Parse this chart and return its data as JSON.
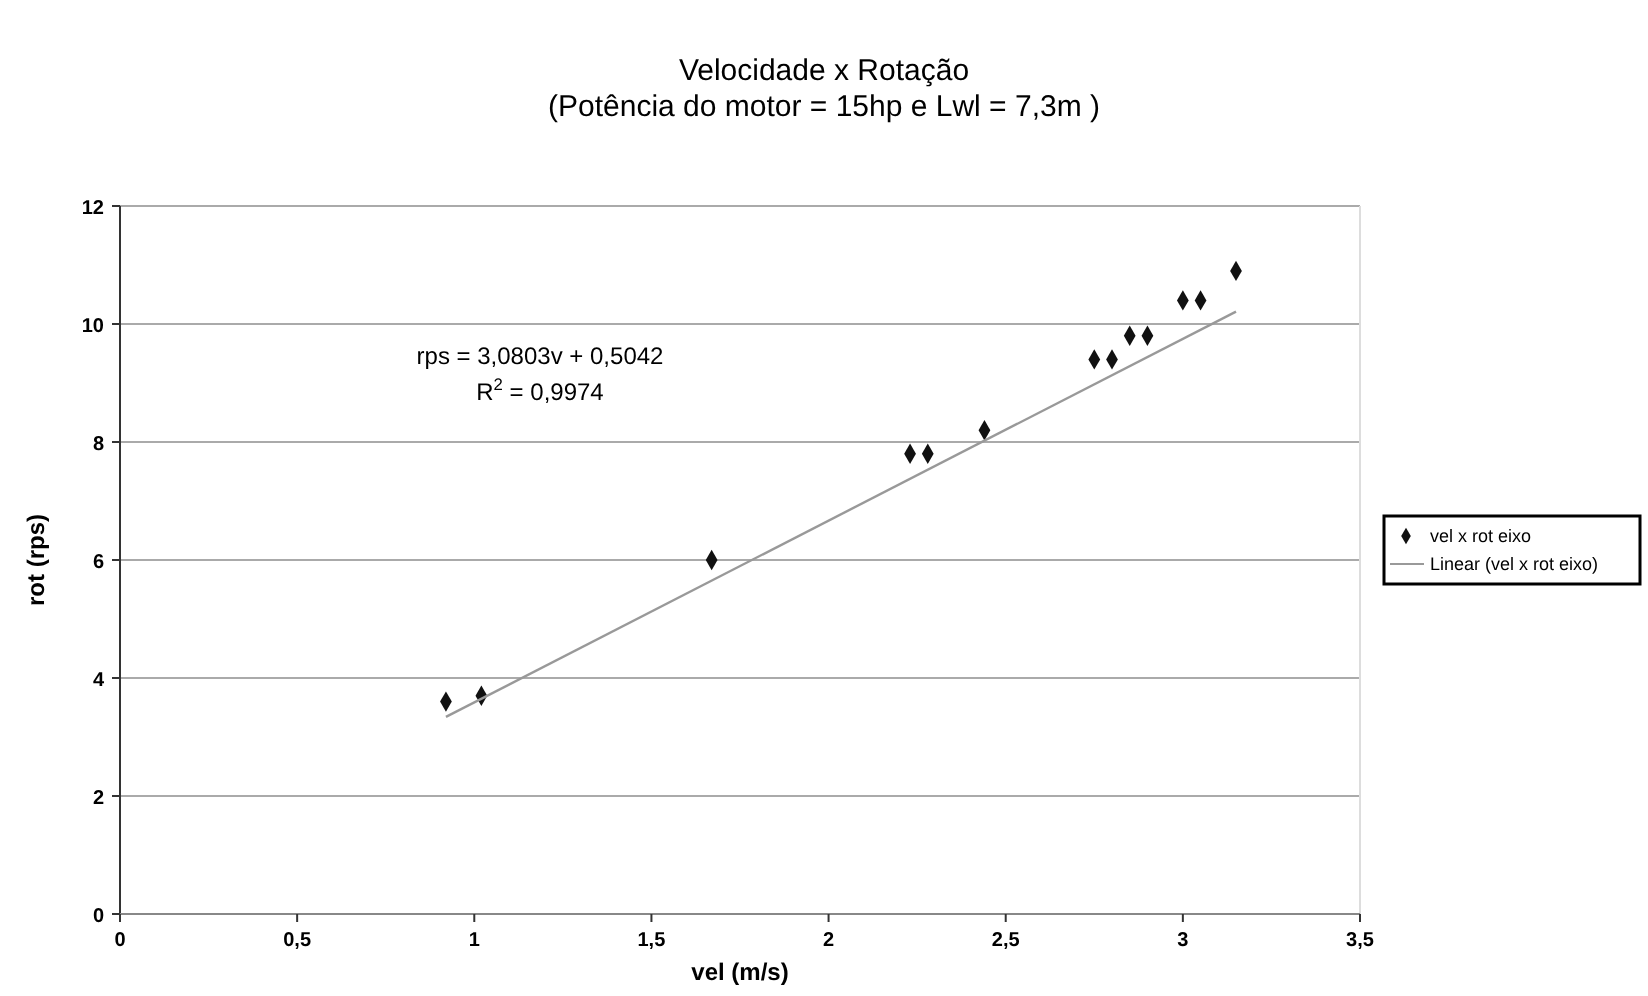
{
  "chart_data": {
    "type": "scatter",
    "title": "Velocidade x Rotação",
    "subtitle": "(Potência do motor = 15hp e Lwl = 7,3m )",
    "xlabel": "vel (m/s)",
    "ylabel": "rot (rps)",
    "xlim": [
      0,
      3.5
    ],
    "xticks": [
      0,
      {
        "value": 0.5,
        "label": "0,5"
      },
      1,
      {
        "value": 1.5,
        "label": "1,5"
      },
      2,
      {
        "value": 2.5,
        "label": "2,5"
      },
      3,
      {
        "value": 3.5,
        "label": "3,5"
      }
    ],
    "ylim": [
      0,
      12
    ],
    "yticks": [
      0,
      2,
      4,
      6,
      8,
      10,
      12
    ],
    "grid": "y",
    "legend": "right",
    "marker": "diamond",
    "annotations": [
      {
        "text": "rps = 3,0803v + 0,5042"
      },
      {
        "text": "R$^{2}$ = 0,9974"
      }
    ],
    "series": [
      {
        "name": "vel x rot eixo",
        "color": "#111111",
        "x": [
          0.92,
          1.02,
          1.67,
          2.23,
          2.28,
          2.44,
          2.75,
          2.8,
          2.85,
          2.9,
          3.0,
          3.05,
          3.15
        ],
        "values": [
          3.6,
          3.7,
          6.0,
          7.8,
          7.8,
          8.2,
          9.4,
          9.4,
          9.8,
          9.8,
          10.4,
          10.4,
          10.9
        ]
      },
      {
        "name": "Linear (vel x rot eixo)",
        "type": "line",
        "marker": "none",
        "color": "#999999",
        "x": [
          0.92,
          3.15
        ],
        "values": [
          3.34,
          10.21
        ]
      }
    ]
  }
}
